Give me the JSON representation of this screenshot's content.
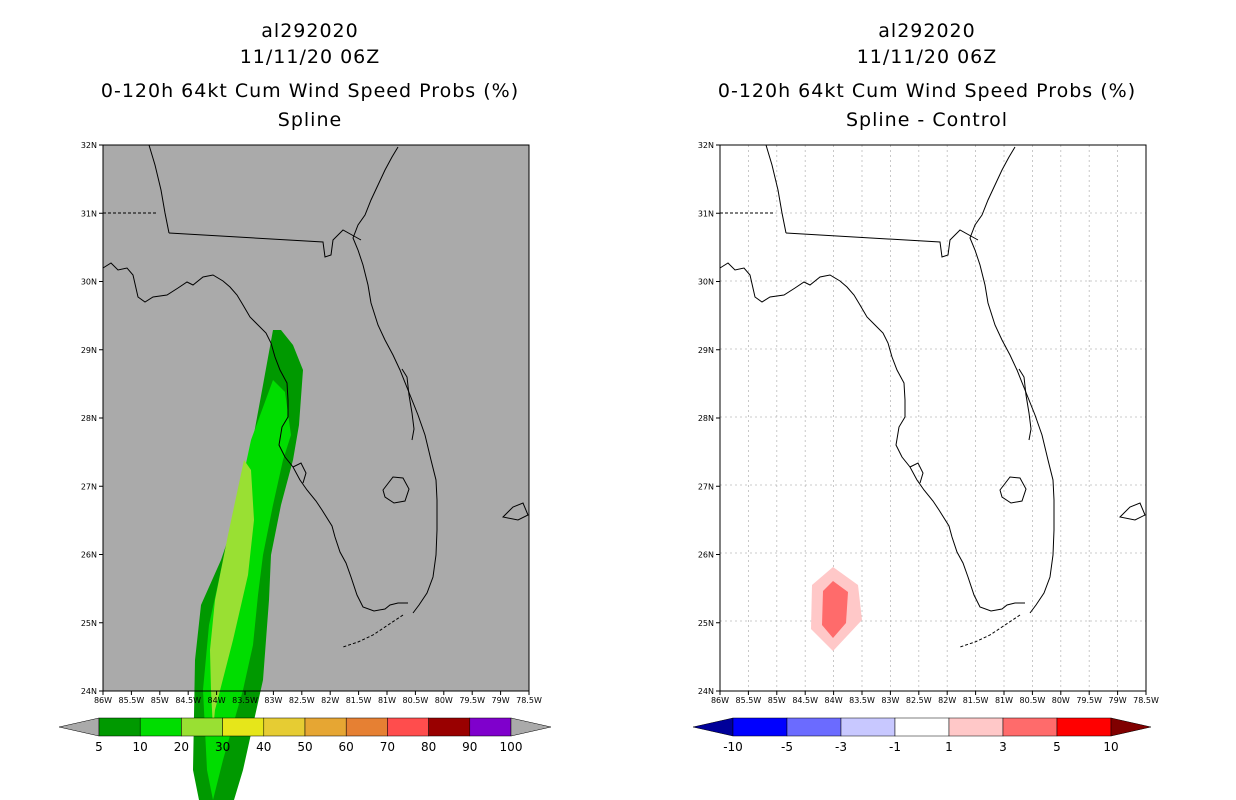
{
  "left_panel": {
    "storm_id": "al292020",
    "datetime": "11/11/20 06Z",
    "product": "0-120h 64kt Cum Wind Speed Probs (%)",
    "subtitle": "Spline",
    "background_color": "#aaaaaa"
  },
  "right_panel": {
    "storm_id": "al292020",
    "datetime": "11/11/20 06Z",
    "product": "0-120h 64kt Cum Wind Speed Probs (%)",
    "subtitle": "Spline - Control",
    "background_color": "#ffffff"
  },
  "map_axes": {
    "lat_labels": [
      "32N",
      "31N",
      "30N",
      "29N",
      "28N",
      "27N",
      "26N",
      "25N",
      "24N"
    ],
    "lon_labels": [
      "86W",
      "85.5W",
      "85W",
      "84.5W",
      "84W",
      "83.5W",
      "83W",
      "82.5W",
      "82W",
      "81.5W",
      "81W",
      "80.5W",
      "80W",
      "79.5W",
      "79W",
      "78.5W"
    ],
    "lat_range": [
      24,
      32
    ],
    "lon_range": [
      -86,
      -78.5
    ]
  },
  "left_colorbar": {
    "labels": [
      "5",
      "10",
      "20",
      "30",
      "40",
      "50",
      "60",
      "70",
      "80",
      "90",
      "100"
    ],
    "colors": [
      "#009900",
      "#00dd00",
      "#99e033",
      "#e6e61a",
      "#e6cc33",
      "#e6a633",
      "#e68033",
      "#ff4d4d",
      "#990000",
      "#7f00cc"
    ],
    "under_color": "#aaaaaa",
    "over_color": "#aaaaaa"
  },
  "right_colorbar": {
    "labels": [
      "-10",
      "-5",
      "-3",
      "-1",
      "1",
      "3",
      "5",
      "10"
    ],
    "colors": [
      "#0000ff",
      "#6b6bff",
      "#c8c8ff",
      "#ffffff",
      "#ffc8c8",
      "#ff6b6b",
      "#ff0000"
    ],
    "under_color": "#000099",
    "over_color": "#800000"
  }
}
